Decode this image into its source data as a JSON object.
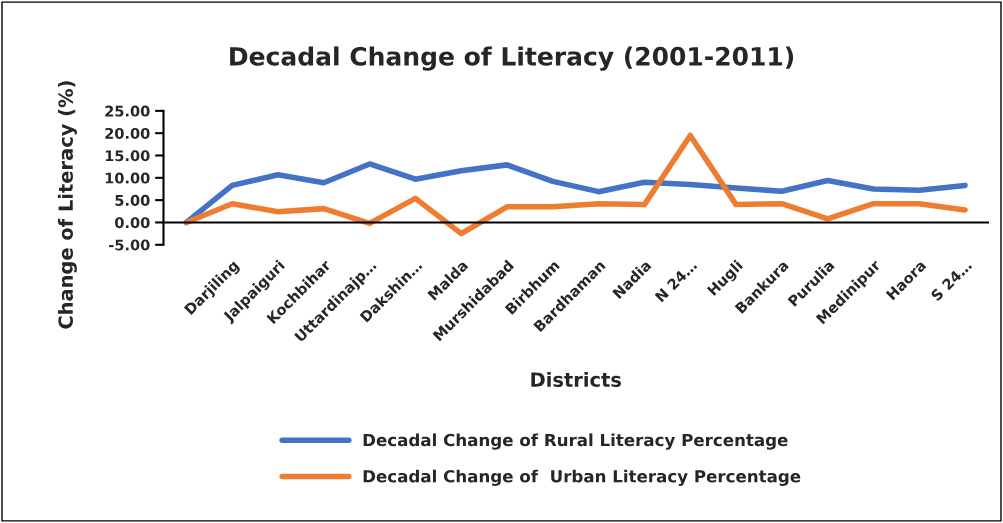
{
  "chart_data": {
    "type": "line",
    "title": "Decadal Change of Literacy (2001-2011)",
    "xlabel": "Districts",
    "ylabel": "Change of Literacy (%)",
    "categories": [
      null,
      "Darjiling",
      "Jalpaiguri",
      "Kochbihar",
      "Uttardinajp…",
      "Dakshin…",
      "Malda",
      "Murshidabad",
      "Birbhum",
      "Bardhaman",
      "Nadia",
      "N 24…",
      "Hugli",
      "Bankura",
      "Purulia",
      "Medinipur",
      "Haora",
      "S 24…"
    ],
    "series": [
      {
        "name": "Decadal Change of Rural Literacy Percentage",
        "color": "#4472c4",
        "values": [
          0,
          8.3,
          10.7,
          8.9,
          13.1,
          9.7,
          11.6,
          12.9,
          9.2,
          6.9,
          9.0,
          8.5,
          7.7,
          7.0,
          9.4,
          7.5,
          7.2,
          8.3
        ]
      },
      {
        "name": "Decadal Change of  Urban Literacy Percentage",
        "color": "#ed7d31",
        "values": [
          0,
          4.2,
          2.4,
          3.1,
          -0.2,
          5.4,
          -2.5,
          3.5,
          3.5,
          4.2,
          4.0,
          19.5,
          4.0,
          4.2,
          0.8,
          4.2,
          4.2,
          2.8
        ]
      }
    ],
    "ylim": [
      -5,
      25
    ],
    "yticks": [
      {
        "value": -5,
        "label": "-5.00"
      },
      {
        "value": 0,
        "label": "0.00"
      },
      {
        "value": 5,
        "label": "5.00"
      },
      {
        "value": 10,
        "label": "10.00"
      },
      {
        "value": 15,
        "label": "15.00"
      },
      {
        "value": 20,
        "label": "20.00"
      },
      {
        "value": 25,
        "label": "25.00"
      }
    ],
    "grid": false,
    "legend": "bottom",
    "marker": "none",
    "line_style": "solid"
  }
}
